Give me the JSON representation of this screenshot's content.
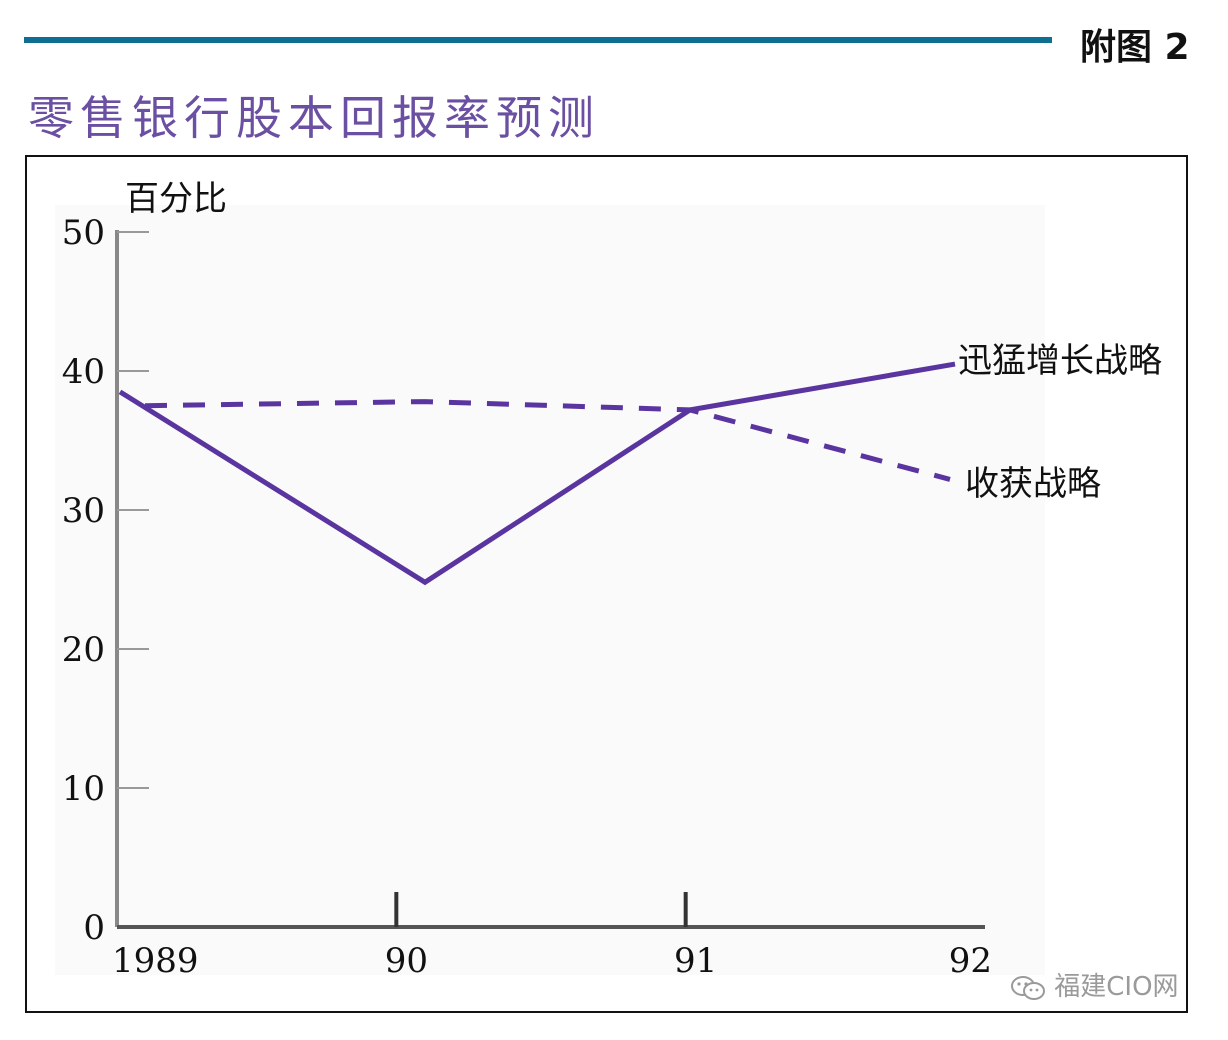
{
  "header": {
    "figure_label": "附图 2",
    "title": "零售银行股本回报率预测"
  },
  "watermark": {
    "text": "福建CIO网",
    "icon": "wechat-icon"
  },
  "colors": {
    "line": "#5a35a0",
    "header_bar": "#0e6f93",
    "title": "#6a4fa2"
  },
  "chart_data": {
    "type": "line",
    "ylabel": "百分比",
    "xlabel": "",
    "categories": [
      "1989",
      "90",
      "91",
      "92"
    ],
    "x": [
      1989,
      1990,
      1991,
      1992
    ],
    "yticks": [
      0,
      10,
      20,
      30,
      40,
      50
    ],
    "ylim": [
      0,
      50
    ],
    "grid": false,
    "series": [
      {
        "name": "迅猛增长战略",
        "style": "solid",
        "values": [
          38.5,
          24.8,
          37.2,
          40.5
        ]
      },
      {
        "name": "收获战略",
        "style": "dashed",
        "values": [
          37.5,
          37.8,
          37.2,
          32.2
        ]
      }
    ]
  }
}
